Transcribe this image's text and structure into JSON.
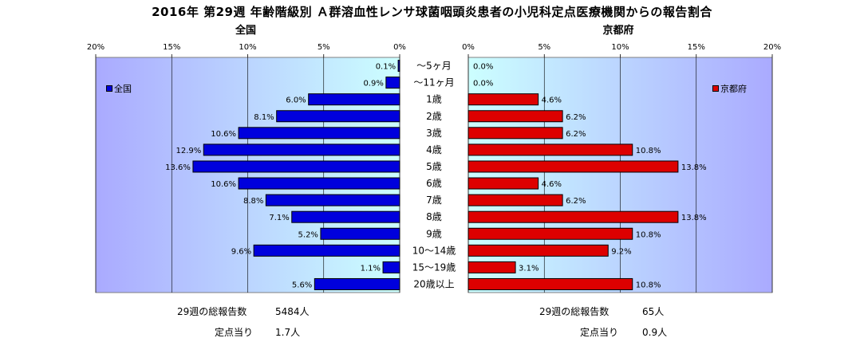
{
  "chart_title": "2016年 第29週 年齢階級別 Ａ群溶血性レンサ球菌咽頭炎患者の小児科定点医療機関からの報告割合",
  "colors": {
    "national": "#0000dd",
    "kyoto": "#dd0000",
    "plot_bg_outer": "#aaaaff",
    "plot_bg_inner": "#ccffff"
  },
  "chart_data": [
    {
      "type": "bar",
      "orientation": "horizontal",
      "title": "全国",
      "xlim": [
        0,
        20
      ],
      "x_reversed": true,
      "tick_labels": [
        "20%",
        "15%",
        "10%",
        "5%",
        "0%"
      ],
      "legend": "top-left",
      "categories": [
        "～5ヶ月",
        "～11ヶ月",
        "1歳",
        "2歳",
        "3歳",
        "4歳",
        "5歳",
        "6歳",
        "7歳",
        "8歳",
        "9歳",
        "10～14歳",
        "15～19歳",
        "20歳以上"
      ],
      "series": [
        {
          "name": "全国",
          "values": [
            0.1,
            0.9,
            6.0,
            8.1,
            10.6,
            12.9,
            13.6,
            10.6,
            8.8,
            7.1,
            5.2,
            9.6,
            1.1,
            5.6
          ],
          "labels": [
            "0.1%",
            "0.9%",
            "6.0%",
            "8.1%",
            "10.6%",
            "12.9%",
            "13.6%",
            "10.6%",
            "8.8%",
            "7.1%",
            "5.2%",
            "9.6%",
            "1.1%",
            "5.6%"
          ]
        }
      ]
    },
    {
      "type": "bar",
      "orientation": "horizontal",
      "title": "京都府",
      "xlim": [
        0,
        20
      ],
      "tick_labels": [
        "0%",
        "5%",
        "10%",
        "15%",
        "20%"
      ],
      "legend": "top-right",
      "categories": [
        "～5ヶ月",
        "～11ヶ月",
        "1歳",
        "2歳",
        "3歳",
        "4歳",
        "5歳",
        "6歳",
        "7歳",
        "8歳",
        "9歳",
        "10～14歳",
        "15～19歳",
        "20歳以上"
      ],
      "series": [
        {
          "name": "京都府",
          "values": [
            0.0,
            0.0,
            4.6,
            6.2,
            6.2,
            10.8,
            13.8,
            4.6,
            6.2,
            13.8,
            10.8,
            9.2,
            3.1,
            10.8
          ],
          "labels": [
            "0.0%",
            "0.0%",
            "4.6%",
            "6.2%",
            "6.2%",
            "10.8%",
            "13.8%",
            "4.6%",
            "6.2%",
            "13.8%",
            "10.8%",
            "9.2%",
            "3.1%",
            "10.8%"
          ]
        }
      ]
    }
  ],
  "footer": {
    "national": {
      "total_label": "29週の総報告数",
      "total_value": "5484人",
      "per_label": "定点当り",
      "per_value": "1.7人"
    },
    "kyoto": {
      "total_label": "29週の総報告数",
      "total_value": "65人",
      "per_label": "定点当り",
      "per_value": "0.9人"
    }
  }
}
